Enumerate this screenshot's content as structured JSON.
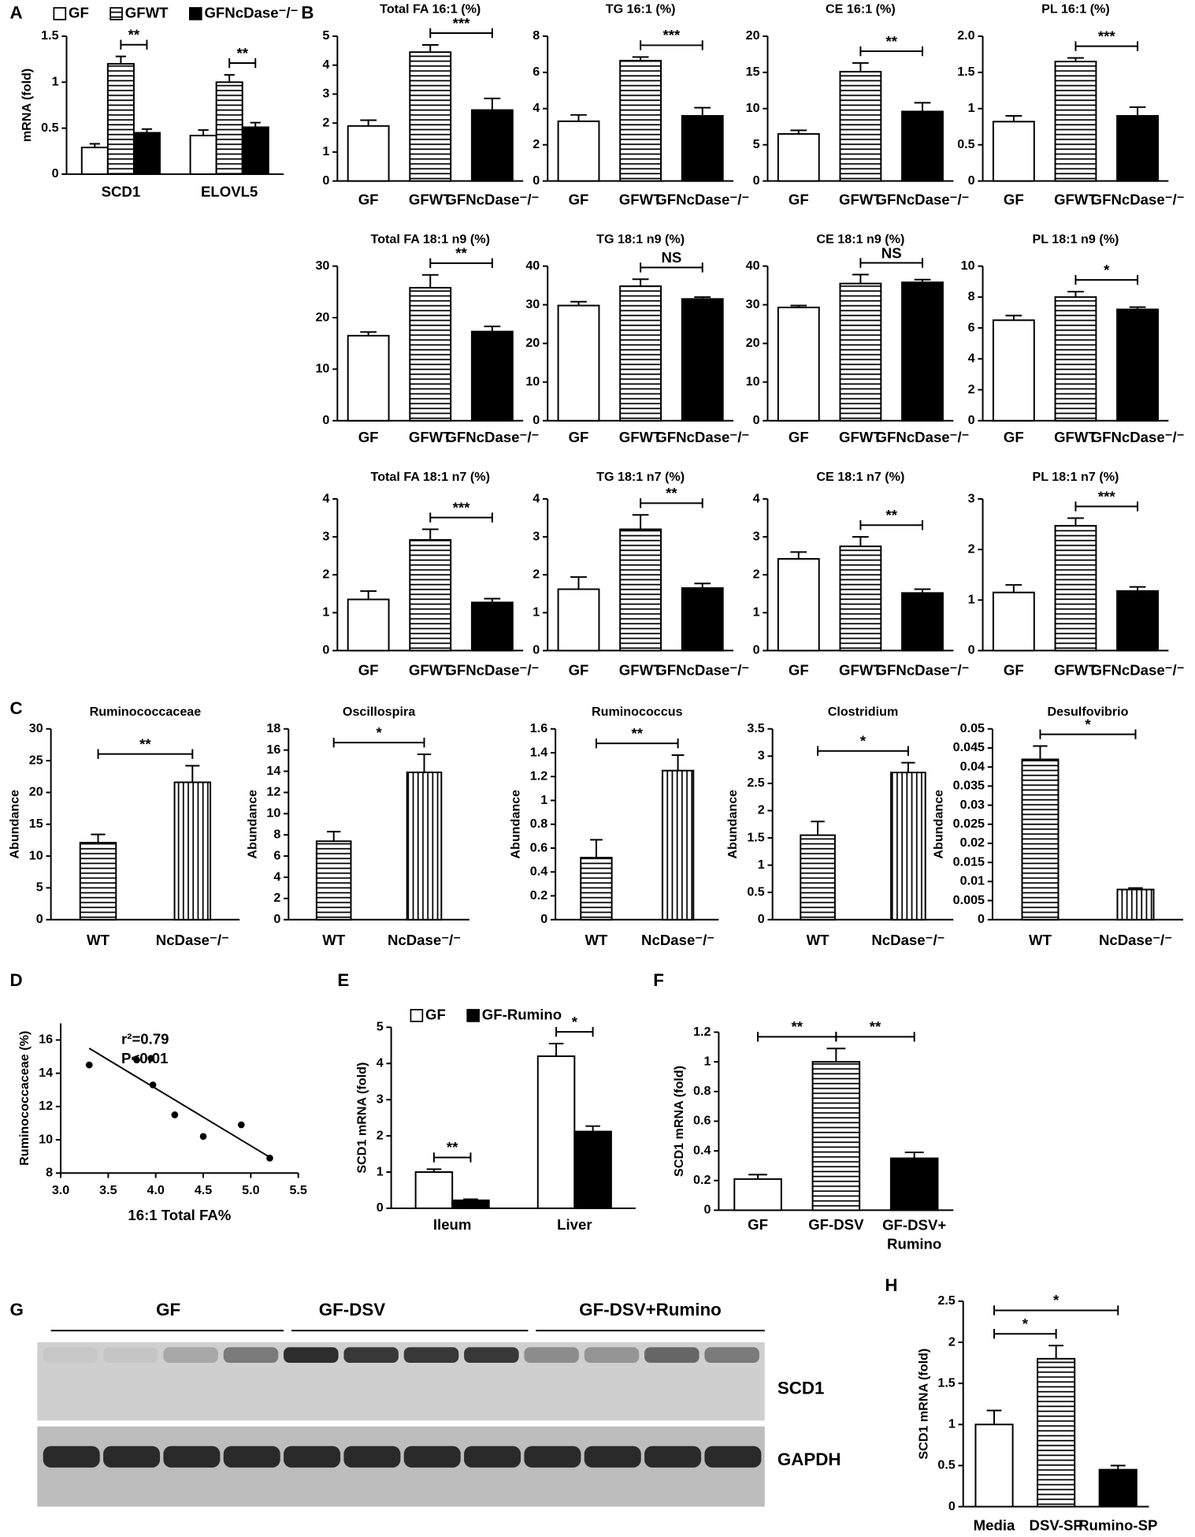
{
  "chart_data": [
    {
      "type": "bar",
      "panel": "A",
      "ylabel": "mRNA (fold)",
      "categories": [
        "SCD1",
        "ELOVL5"
      ],
      "series": [
        {
          "name": "GF",
          "fill": "white",
          "values": [
            0.29,
            0.42
          ],
          "errors": [
            0.04,
            0.06
          ]
        },
        {
          "name": "GFWT",
          "fill": "hlines",
          "values": [
            1.2,
            1.0
          ],
          "errors": [
            0.08,
            0.08
          ]
        },
        {
          "name": "GFNcDase⁻/⁻",
          "fill": "black",
          "values": [
            0.45,
            0.51
          ],
          "errors": [
            0.04,
            0.05
          ]
        }
      ],
      "ylim": [
        0,
        1.5
      ],
      "yticks": [
        0,
        0.5,
        1,
        1.5
      ],
      "significance": [
        {
          "text": "**",
          "category": 0,
          "between": [
            1,
            2
          ]
        },
        {
          "text": "**",
          "category": 1,
          "between": [
            1,
            2
          ]
        }
      ]
    },
    {
      "type": "bar",
      "panel": "B",
      "title": "Total FA 16:1 (%)",
      "categories": [
        "GF",
        "GFWT",
        "GFNcDase⁻/⁻"
      ],
      "fills": [
        "white",
        "hlines",
        "black"
      ],
      "values": [
        1.9,
        4.45,
        2.45
      ],
      "errors": [
        0.2,
        0.25,
        0.4
      ],
      "ylim": [
        0,
        5
      ],
      "yticks": [
        0,
        1,
        2,
        3,
        4,
        5
      ],
      "significance": [
        {
          "text": "***",
          "between": [
            1,
            2
          ]
        }
      ]
    },
    {
      "type": "bar",
      "title": "TG 16:1 (%)",
      "categories": [
        "GF",
        "GFWT",
        "GFNcDase⁻/⁻"
      ],
      "fills": [
        "white",
        "hlines",
        "black"
      ],
      "values": [
        3.3,
        6.65,
        3.6
      ],
      "errors": [
        0.35,
        0.2,
        0.45
      ],
      "ylim": [
        0,
        8
      ],
      "yticks": [
        0,
        2,
        4,
        6,
        8
      ],
      "significance": [
        {
          "text": "***",
          "between": [
            1,
            2
          ]
        }
      ]
    },
    {
      "type": "bar",
      "title": "CE 16:1 (%)",
      "categories": [
        "GF",
        "GFWT",
        "GFNcDase⁻/⁻"
      ],
      "fills": [
        "white",
        "hlines",
        "black"
      ],
      "values": [
        6.5,
        15.1,
        9.6
      ],
      "errors": [
        0.5,
        1.2,
        1.2
      ],
      "ylim": [
        0,
        20
      ],
      "yticks": [
        0,
        5,
        10,
        15,
        20
      ],
      "significance": [
        {
          "text": "**",
          "between": [
            1,
            2
          ]
        }
      ]
    },
    {
      "type": "bar",
      "title": "PL 16:1 (%)",
      "categories": [
        "GF",
        "GFWT",
        "GFNcDase⁻/⁻"
      ],
      "fills": [
        "white",
        "hlines",
        "black"
      ],
      "values": [
        0.82,
        1.65,
        0.9
      ],
      "errors": [
        0.08,
        0.05,
        0.12
      ],
      "ylim": [
        0,
        2
      ],
      "yticks": [
        0,
        0.5,
        1,
        1.5,
        {
          "value": 2,
          "label": "2.0"
        }
      ],
      "significance": [
        {
          "text": "***",
          "between": [
            1,
            2
          ]
        }
      ]
    },
    {
      "type": "bar",
      "title": "Total FA 18:1 n9 (%)",
      "categories": [
        "GF",
        "GFWT",
        "GFNcDase⁻/⁻"
      ],
      "fills": [
        "white",
        "hlines",
        "black"
      ],
      "values": [
        16.5,
        25.8,
        17.3
      ],
      "errors": [
        0.7,
        2.5,
        1.0
      ],
      "ylim": [
        0,
        30
      ],
      "yticks": [
        0,
        10,
        20,
        30
      ],
      "significance": [
        {
          "text": "**",
          "between": [
            1,
            2
          ]
        }
      ]
    },
    {
      "type": "bar",
      "title": "TG 18:1 n9 (%)",
      "categories": [
        "GF",
        "GFWT",
        "GFNcDase⁻/⁻"
      ],
      "fills": [
        "white",
        "hlines",
        "black"
      ],
      "values": [
        29.8,
        34.8,
        31.5
      ],
      "errors": [
        1.0,
        1.8,
        0.5
      ],
      "ylim": [
        0,
        40
      ],
      "yticks": [
        0,
        10,
        20,
        30,
        40
      ],
      "significance": [
        {
          "text": "NS",
          "between": [
            1,
            2
          ]
        }
      ]
    },
    {
      "type": "bar",
      "title": "CE 18:1 n9 (%)",
      "categories": [
        "GF",
        "GFWT",
        "GFNcDase⁻/⁻"
      ],
      "fills": [
        "white",
        "hlines",
        "black"
      ],
      "values": [
        29.3,
        35.5,
        35.8
      ],
      "errors": [
        0.5,
        2.3,
        0.7
      ],
      "ylim": [
        0,
        40
      ],
      "yticks": [
        0,
        10,
        20,
        30,
        40
      ],
      "significance": [
        {
          "text": "NS",
          "between": [
            1,
            2
          ]
        }
      ]
    },
    {
      "type": "bar",
      "title": "PL 18:1 n9 (%)",
      "categories": [
        "GF",
        "GFWT",
        "GFNcDase⁻/⁻"
      ],
      "fills": [
        "white",
        "hlines",
        "black"
      ],
      "values": [
        6.5,
        8.0,
        7.2
      ],
      "errors": [
        0.3,
        0.35,
        0.15
      ],
      "ylim": [
        0,
        10
      ],
      "yticks": [
        0,
        2,
        4,
        6,
        8,
        10
      ],
      "significance": [
        {
          "text": "*",
          "between": [
            1,
            2
          ]
        }
      ]
    },
    {
      "type": "bar",
      "title": "Total FA 18:1 n7 (%)",
      "categories": [
        "GF",
        "GFWT",
        "GFNcDase⁻/⁻"
      ],
      "fills": [
        "white",
        "hlines",
        "black"
      ],
      "values": [
        1.35,
        2.92,
        1.27
      ],
      "errors": [
        0.22,
        0.28,
        0.1
      ],
      "ylim": [
        0,
        4
      ],
      "yticks": [
        0,
        1,
        2,
        3,
        4
      ],
      "significance": [
        {
          "text": "***",
          "between": [
            1,
            2
          ]
        }
      ]
    },
    {
      "type": "bar",
      "title": "TG 18:1 n7 (%)",
      "categories": [
        "GF",
        "GFWT",
        "GFNcDase⁻/⁻"
      ],
      "fills": [
        "white",
        "hlines",
        "black"
      ],
      "values": [
        1.62,
        3.2,
        1.65
      ],
      "errors": [
        0.32,
        0.38,
        0.12
      ],
      "ylim": [
        0,
        4
      ],
      "yticks": [
        0,
        1,
        2,
        3,
        4
      ],
      "significance": [
        {
          "text": "**",
          "between": [
            1,
            2
          ]
        }
      ]
    },
    {
      "type": "bar",
      "title": "CE 18:1 n7 (%)",
      "categories": [
        "GF",
        "GFWT",
        "GFNcDase⁻/⁻"
      ],
      "fills": [
        "white",
        "hlines",
        "black"
      ],
      "values": [
        2.42,
        2.75,
        1.52
      ],
      "errors": [
        0.18,
        0.25,
        0.1
      ],
      "ylim": [
        0,
        4
      ],
      "yticks": [
        0,
        1,
        2,
        3,
        4
      ],
      "significance": [
        {
          "text": "**",
          "between": [
            1,
            2
          ]
        }
      ]
    },
    {
      "type": "bar",
      "title": "PL 18:1 n7 (%)",
      "categories": [
        "GF",
        "GFWT",
        "GFNcDase⁻/⁻"
      ],
      "fills": [
        "white",
        "hlines",
        "black"
      ],
      "values": [
        1.15,
        2.47,
        1.18
      ],
      "errors": [
        0.15,
        0.15,
        0.08
      ],
      "ylim": [
        0,
        3
      ],
      "yticks": [
        0,
        1,
        2,
        3
      ],
      "significance": [
        {
          "text": "***",
          "between": [
            1,
            2
          ]
        }
      ]
    },
    {
      "type": "bar",
      "panel": "C",
      "title": "Ruminococcaceae",
      "ylabel": "Abundance",
      "categories": [
        "WT",
        "NcDase⁻/⁻"
      ],
      "fills": [
        "hlines",
        "vlines"
      ],
      "values": [
        12.1,
        21.6
      ],
      "errors": [
        1.3,
        2.6
      ],
      "ylim": [
        0,
        30
      ],
      "yticks": [
        0,
        5,
        10,
        15,
        20,
        25,
        30
      ],
      "significance": [
        {
          "text": "**",
          "between": [
            0,
            1
          ]
        }
      ]
    },
    {
      "type": "bar",
      "title": "Oscillospira",
      "ylabel": "Abundance",
      "categories": [
        "WT",
        "NcDase⁻/⁻"
      ],
      "fills": [
        "hlines",
        "vlines"
      ],
      "values": [
        7.4,
        13.9
      ],
      "errors": [
        0.9,
        1.7
      ],
      "ylim": [
        0,
        18
      ],
      "yticks": [
        0,
        2,
        4,
        6,
        8,
        10,
        12,
        14,
        16,
        18
      ],
      "significance": [
        {
          "text": "*",
          "between": [
            0,
            1
          ]
        }
      ]
    },
    {
      "type": "bar",
      "title": "Ruminococcus",
      "ylabel": "Abundance",
      "categories": [
        "WT",
        "NcDase⁻/⁻"
      ],
      "fills": [
        "hlines",
        "vlines"
      ],
      "values": [
        0.52,
        1.25
      ],
      "errors": [
        0.15,
        0.13
      ],
      "ylim": [
        0,
        1.6
      ],
      "yticks": [
        0,
        0.2,
        0.4,
        0.6,
        0.8,
        1,
        1.2,
        1.4,
        1.6
      ],
      "significance": [
        {
          "text": "**",
          "between": [
            0,
            1
          ]
        }
      ]
    },
    {
      "type": "bar",
      "title": "Clostridium",
      "ylabel": "Abundance",
      "categories": [
        "WT",
        "NcDase⁻/⁻"
      ],
      "fills": [
        "hlines",
        "vlines"
      ],
      "values": [
        1.55,
        2.7
      ],
      "errors": [
        0.25,
        0.18
      ],
      "ylim": [
        0,
        3.5
      ],
      "yticks": [
        0,
        0.5,
        1,
        1.5,
        2,
        2.5,
        3,
        3.5
      ],
      "significance": [
        {
          "text": "*",
          "between": [
            0,
            1
          ]
        }
      ]
    },
    {
      "type": "bar",
      "title": "Desulfovibrio",
      "ylabel": "Abundance",
      "categories": [
        "WT",
        "NcDase⁻/⁻"
      ],
      "fills": [
        "hlines",
        "vlines"
      ],
      "values": [
        0.042,
        0.0079
      ],
      "errors": [
        0.0035,
        0.0004
      ],
      "ylim": [
        0,
        0.05
      ],
      "yticks": [
        0,
        0.005,
        0.01,
        0.015,
        0.02,
        0.025,
        0.03,
        0.035,
        0.04,
        0.045,
        0.05
      ],
      "significance": [
        {
          "text": "*",
          "between": [
            0,
            1
          ]
        }
      ]
    },
    {
      "type": "scatter",
      "panel": "D",
      "xlabel": "16:1 Total FA%",
      "ylabel": "Ruminococcaceae (%)",
      "x": [
        3.3,
        3.8,
        3.95,
        3.97,
        4.2,
        4.5,
        4.9,
        5.2
      ],
      "values": [
        14.5,
        14.8,
        14.9,
        13.3,
        11.5,
        10.2,
        10.9,
        8.9
      ],
      "fit": {
        "x": [
          3.3,
          5.2
        ],
        "values": [
          15.5,
          8.95
        ]
      },
      "annotations": [
        "r²=0.79",
        "P<0.01"
      ],
      "xlim": [
        3,
        5.5
      ],
      "xticks": [
        {
          "value": 3,
          "label": "3.0"
        },
        3.5,
        {
          "value": 4,
          "label": "4.0"
        },
        4.5,
        {
          "value": 5,
          "label": "5.0"
        },
        5.5
      ],
      "ylim": [
        8,
        17
      ],
      "yticks": [
        8,
        10,
        12,
        14,
        16
      ]
    },
    {
      "type": "bar",
      "panel": "E",
      "ylabel": "SCD1 mRNA (fold)",
      "categories": [
        "Ileum",
        "Liver"
      ],
      "series": [
        {
          "name": "GF",
          "fill": "white",
          "values": [
            1.0,
            4.2
          ],
          "errors": [
            0.08,
            0.35
          ]
        },
        {
          "name": "GF-Rumino",
          "fill": "black",
          "values": [
            0.22,
            2.12
          ],
          "errors": [
            0.03,
            0.15
          ]
        }
      ],
      "ylim": [
        0,
        5
      ],
      "yticks": [
        0,
        1,
        2,
        3,
        4,
        5
      ],
      "significance": [
        {
          "text": "**",
          "category": 0,
          "between": [
            0,
            1
          ]
        },
        {
          "text": "*",
          "category": 1,
          "between": [
            0,
            1
          ]
        }
      ]
    },
    {
      "type": "bar",
      "panel": "F",
      "ylabel": "SCD1 mRNA (fold)",
      "categories": [
        "GF",
        "GF-DSV",
        "GF-DSV+\nRumino"
      ],
      "fills": [
        "white",
        "hlines",
        "black"
      ],
      "values": [
        0.21,
        1.0,
        0.35
      ],
      "errors": [
        0.03,
        0.09,
        0.04
      ],
      "ylim": [
        0,
        1.2
      ],
      "yticks": [
        0,
        0.2,
        0.4,
        0.6,
        0.8,
        1,
        1.2
      ],
      "significance": [
        {
          "text": "**",
          "between": [
            0,
            1
          ]
        },
        {
          "text": "**",
          "between": [
            1,
            2
          ]
        }
      ]
    },
    {
      "type": "bar",
      "panel": "H",
      "ylabel": "SCD1 mRNA (fold)",
      "categories": [
        "Media",
        "DSV-SP",
        "Rumino-SP"
      ],
      "fills": [
        "white",
        "hlines",
        "black"
      ],
      "values": [
        1.0,
        1.8,
        0.45
      ],
      "errors": [
        0.17,
        0.16,
        0.05
      ],
      "ylim": [
        0,
        2.5
      ],
      "yticks": [
        0,
        0.5,
        1,
        1.5,
        2,
        2.5
      ],
      "significance": [
        {
          "text": "*",
          "between": [
            0,
            1
          ]
        },
        {
          "text": "*",
          "between": [
            0,
            2
          ]
        }
      ]
    }
  ],
  "blot": {
    "panel": "G",
    "groups": [
      "GF",
      "GF-DSV",
      "GF-DSV+Rumino"
    ],
    "bands": [
      "SCD1",
      "GAPDH"
    ]
  }
}
